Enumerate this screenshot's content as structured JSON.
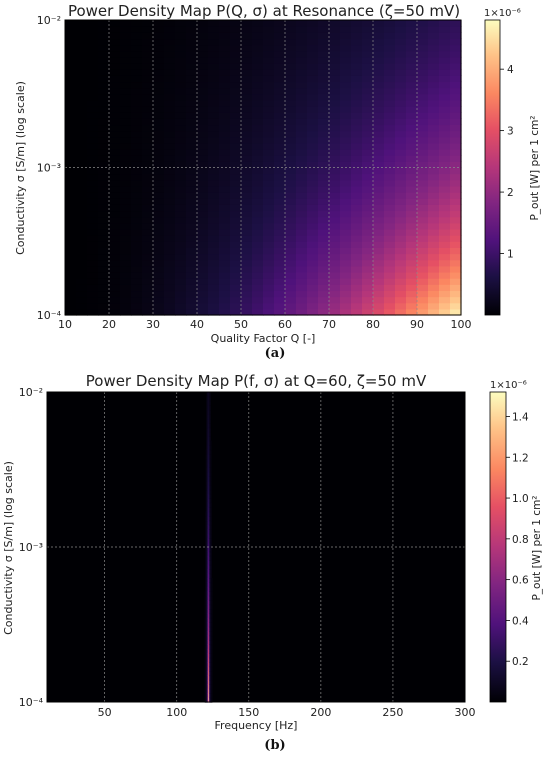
{
  "captions": {
    "a": "(a)",
    "b": "(b)"
  },
  "chart_data": [
    {
      "type": "heatmap",
      "title": "Power Density Map P(Q, σ) at Resonance (ζ=50 mV)",
      "xlabel": "Quality Factor Q [-]",
      "ylabel": "Conductivity σ [S/m] (log scale)",
      "xlim": [
        10,
        100
      ],
      "ylim": [
        0.0001,
        0.01
      ],
      "yscale": "log",
      "x_ticks": [
        "10",
        "20",
        "30",
        "40",
        "50",
        "60",
        "70",
        "80",
        "90",
        "100"
      ],
      "y_ticks": [
        "10⁻⁴",
        "10⁻³",
        "10⁻²"
      ],
      "grid": true,
      "colormap": "magma",
      "colorbar": {
        "label": "P_out [W] per 1 cm²",
        "multiplier": "1×10⁻⁶",
        "range": [
          0,
          4.8
        ],
        "ticks": [
          "1",
          "2",
          "3",
          "4"
        ]
      },
      "model": "P grows with Q and decreases with σ; maximum ≈4.8×10⁻⁶ W at Q=100, σ=10⁻⁴"
    },
    {
      "type": "heatmap",
      "title": "Power Density Map P(f, σ) at Q=60, ζ=50 mV",
      "xlabel": "Frequency [Hz]",
      "ylabel": "Conductivity σ [S/m] (log scale)",
      "xlim": [
        10,
        300
      ],
      "ylim": [
        0.0001,
        0.01
      ],
      "yscale": "log",
      "x_ticks": [
        "50",
        "100",
        "150",
        "200",
        "250",
        "300"
      ],
      "y_ticks": [
        "10⁻⁴",
        "10⁻³",
        "10⁻²"
      ],
      "grid": true,
      "colormap": "magma",
      "colorbar": {
        "label": "P_out [W] per 1 cm²",
        "multiplier": "1×10⁻⁶",
        "range": [
          0,
          1.52
        ],
        "ticks": [
          "0.2",
          "0.4",
          "0.6",
          "0.8",
          "1.0",
          "1.2",
          "1.4"
        ]
      },
      "resonance_hz": 122,
      "model": "Narrow resonance band near 122 Hz; peak ≈1.5×10⁻⁶ W at σ=10⁻⁴, fading toward σ≈10⁻²"
    }
  ]
}
